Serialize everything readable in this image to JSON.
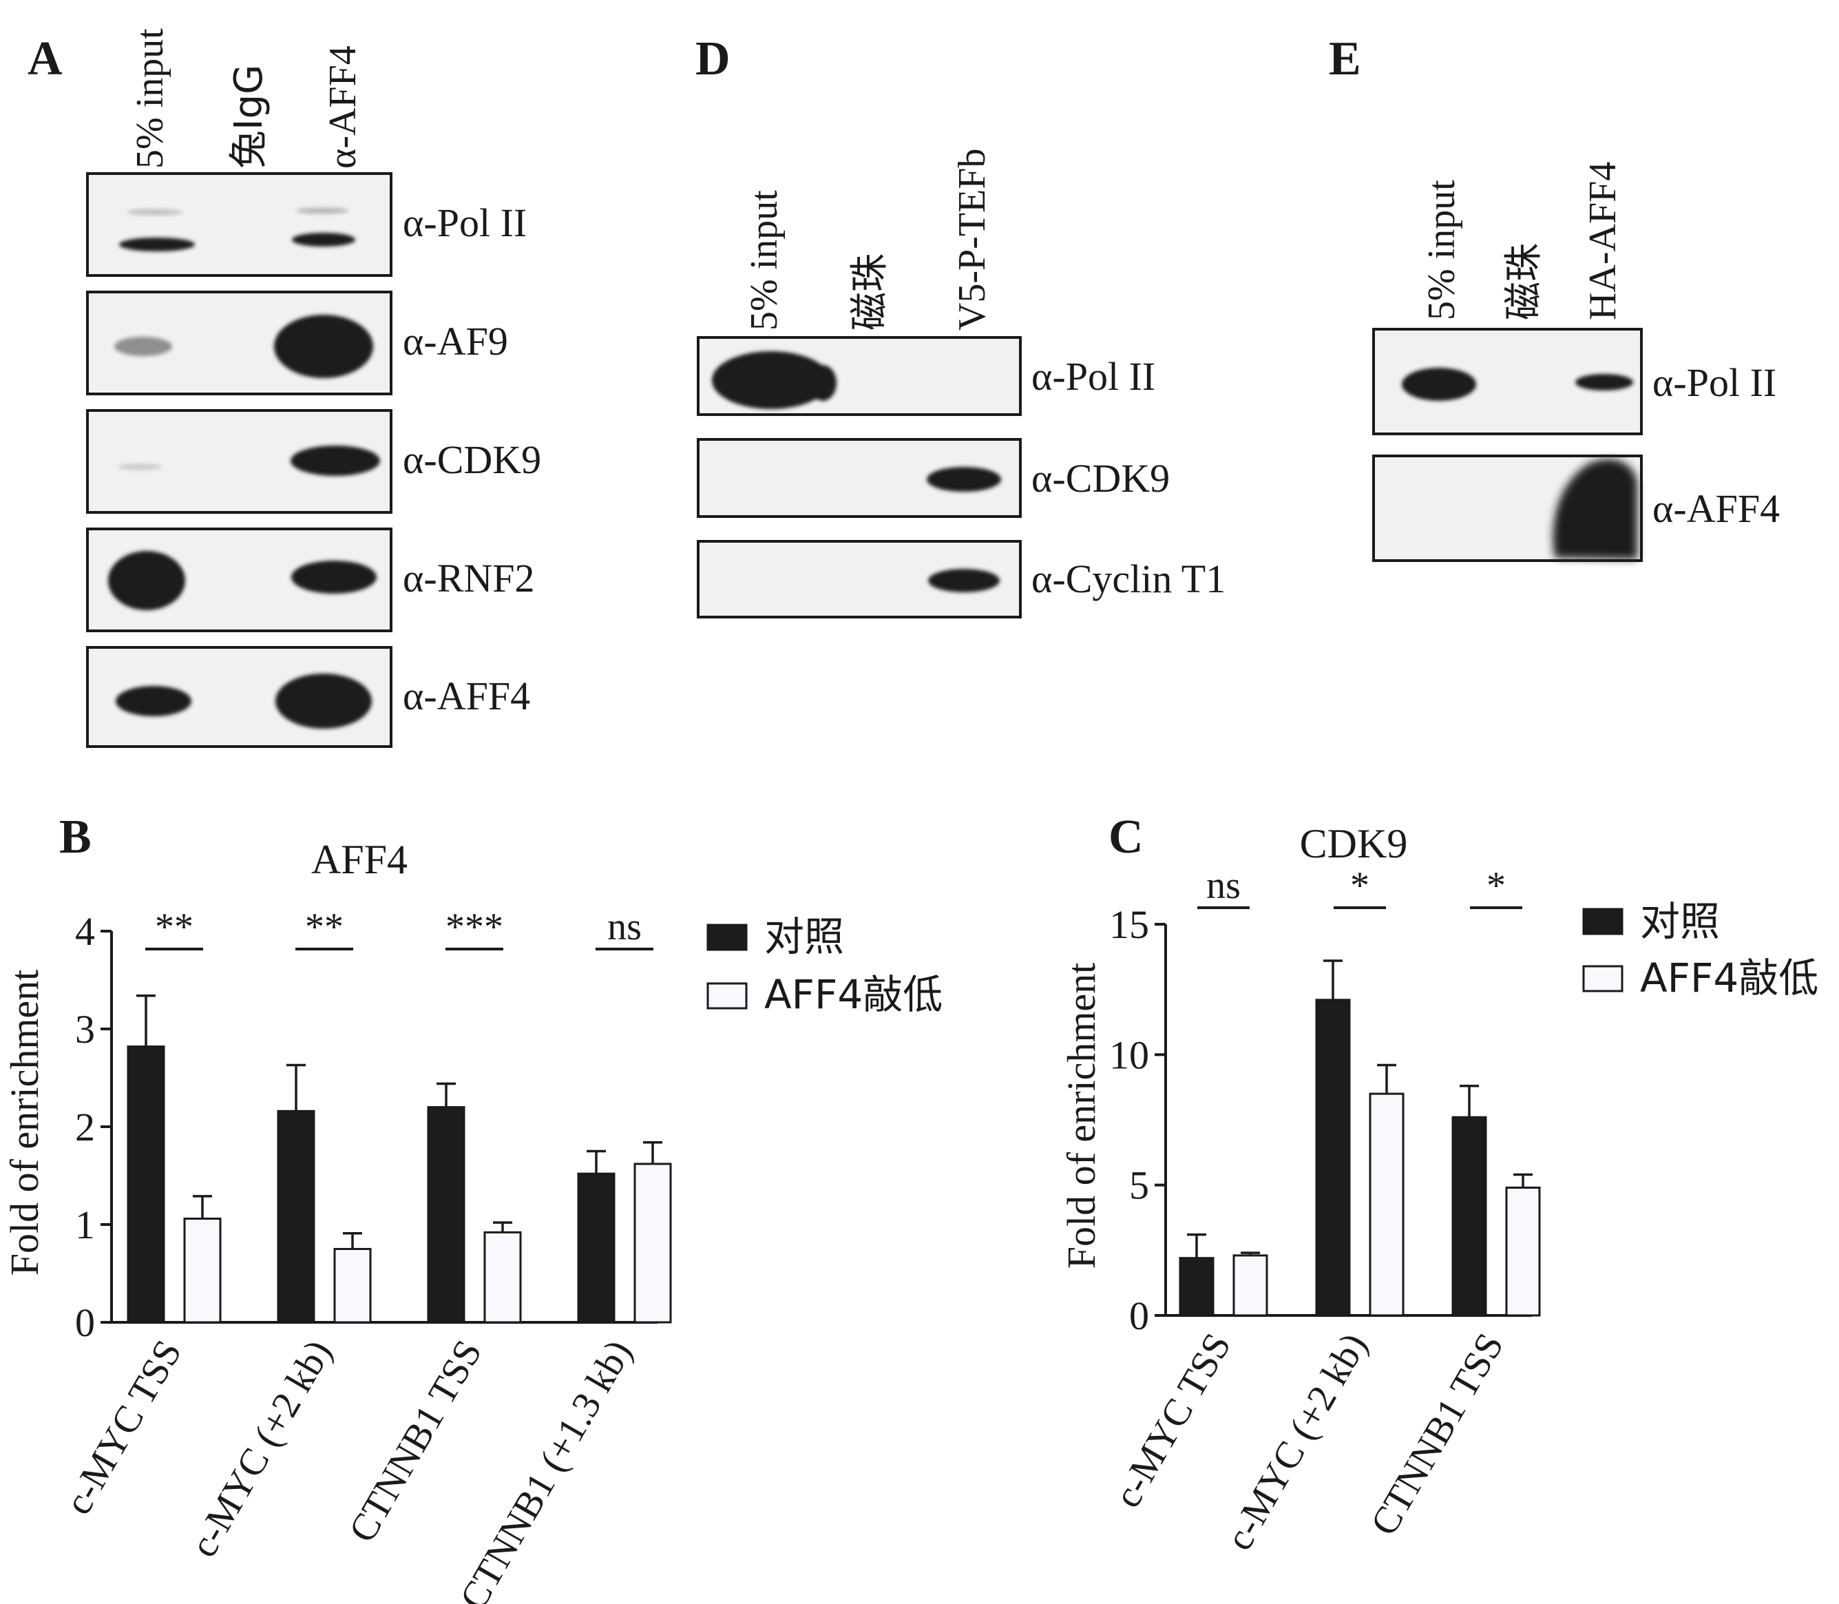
{
  "panels": {
    "A": {
      "letter": "A",
      "lanes": [
        "5% input",
        "兔IgG",
        "α-AFF4"
      ],
      "antibodies": [
        "α-Pol II",
        "α-AF9",
        "α-CDK9",
        "α-RNF2",
        "α-AFF4"
      ]
    },
    "D": {
      "letter": "D",
      "lanes": [
        "5% input",
        "磁珠",
        "V5-P-TEFb"
      ],
      "antibodies": [
        "α-Pol II",
        "α-CDK9",
        "α-Cyclin T1"
      ]
    },
    "E": {
      "letter": "E",
      "lanes": [
        "5% input",
        "磁珠",
        "HA-AFF4"
      ],
      "antibodies": [
        "α-Pol II",
        "α-AFF4"
      ]
    },
    "B": {
      "letter": "B"
    },
    "C": {
      "letter": "C"
    }
  },
  "chart_data": [
    {
      "panel": "B",
      "type": "bar",
      "title": "AFF4",
      "ylabel": "Fold of enrichment",
      "xlabel": "",
      "ylim": [
        0,
        4
      ],
      "yticks": [
        0,
        1,
        2,
        3,
        4
      ],
      "categories": [
        "c-MYC TSS",
        "c-MYC (+2 kb)",
        "CTNNB1 TSS",
        "CTNNB1 (+1.3 kb)"
      ],
      "series": [
        {
          "name": "对照",
          "values": [
            2.82,
            2.16,
            2.2,
            1.52
          ],
          "errors": [
            0.52,
            0.47,
            0.24,
            0.23
          ]
        },
        {
          "name": "AFF4敲低",
          "values": [
            1.06,
            0.75,
            0.92,
            1.62
          ],
          "errors": [
            0.23,
            0.16,
            0.1,
            0.22
          ]
        }
      ],
      "significance": [
        "**",
        "**",
        "***",
        "ns"
      ],
      "legend_position": "top-right"
    },
    {
      "panel": "C",
      "type": "bar",
      "title": "CDK9",
      "ylabel": "Fold of enrichment",
      "xlabel": "",
      "ylim": [
        0,
        15
      ],
      "yticks": [
        0,
        5,
        10,
        15
      ],
      "categories": [
        "c-MYC TSS",
        "c-MYC (+2 kb)",
        "CTNNB1 TSS"
      ],
      "series": [
        {
          "name": "对照",
          "values": [
            2.2,
            12.1,
            7.6
          ],
          "errors": [
            0.9,
            1.5,
            1.2
          ]
        },
        {
          "name": "AFF4敲低",
          "values": [
            2.3,
            8.5,
            4.9
          ],
          "errors": [
            0.1,
            1.1,
            0.5
          ]
        }
      ],
      "significance": [
        "ns",
        "*",
        "*"
      ],
      "legend_position": "top-right"
    }
  ],
  "colors": {
    "control_bar": "#1c1c1c",
    "knockdown_bar": "#f8f9ff",
    "blot_bg": "#f1f1f1",
    "band": "#1a1a1a"
  }
}
